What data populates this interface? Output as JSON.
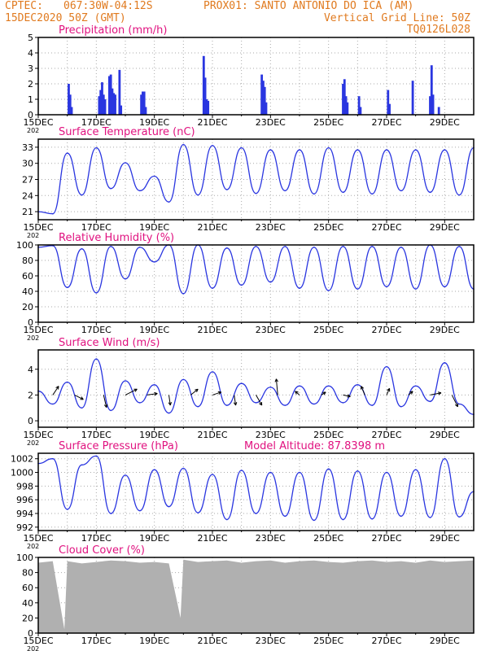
{
  "header": {
    "line1_left": "CPTEC:",
    "line1_coords": "067:30W-04:12S",
    "line1_station": "PROX01: SANTO ANTONIO DO ICA (AM)",
    "line2_left": "15DEC2020 50Z (GMT)",
    "line2_right": "Vertical Grid Line: 50Z",
    "line3_right": "TQ0126L028"
  },
  "colors": {
    "header": "#e07a1f",
    "title": "#e0117f",
    "series": "#2a36e0",
    "cloud": "#b0b0b0",
    "grid": "#aaaaaa",
    "arrow": "#000000"
  },
  "x_axis": {
    "ticks": [
      "15DEC",
      "17DEC",
      "19DEC",
      "21DEC",
      "23DEC",
      "25DEC",
      "27DEC",
      "29DEC"
    ],
    "year_fragment": "202",
    "range_days": [
      0,
      15
    ]
  },
  "chart_data": [
    {
      "type": "bar",
      "title": "Precipitation (mm/h)",
      "ylim": [
        0,
        5
      ],
      "yticks": [
        "0",
        "1",
        "2",
        "3",
        "4",
        "5"
      ],
      "x_days": [
        1.05,
        1.1,
        1.15,
        2.1,
        2.15,
        2.2,
        2.25,
        2.3,
        2.45,
        2.5,
        2.55,
        2.6,
        2.65,
        2.8,
        2.85,
        3.55,
        3.6,
        3.65,
        3.7,
        5.7,
        5.75,
        5.8,
        5.85,
        7.7,
        7.75,
        7.8,
        7.85,
        10.5,
        10.55,
        10.6,
        10.65,
        11.05,
        11.1,
        12.05,
        12.1,
        12.9,
        13.5,
        13.55,
        13.6,
        13.8
      ],
      "values": [
        2.0,
        1.3,
        0.5,
        1.2,
        1.6,
        2.1,
        1.3,
        1.0,
        2.5,
        2.6,
        1.7,
        1.4,
        1.3,
        2.9,
        0.6,
        1.3,
        1.5,
        1.5,
        0.5,
        3.8,
        2.4,
        1.0,
        0.9,
        2.6,
        2.2,
        1.8,
        0.8,
        2.0,
        2.3,
        1.2,
        0.8,
        1.2,
        0.5,
        1.6,
        0.7,
        2.2,
        1.2,
        3.2,
        1.3,
        0.5
      ]
    },
    {
      "type": "line",
      "title": "Surface Temperature (nC)",
      "ylim": [
        19.5,
        34.5
      ],
      "yticks": [
        "21",
        "24",
        "27",
        "30",
        "33"
      ],
      "x_days": [
        0,
        0.5,
        1.0,
        1.5,
        2.0,
        2.5,
        3.0,
        3.5,
        4.0,
        4.5,
        5.0,
        5.5,
        6.0,
        6.5,
        7.0,
        7.5,
        8.0,
        8.5,
        9.0,
        9.5,
        10.0,
        10.5,
        11.0,
        11.5,
        12.0,
        12.5,
        13.0,
        13.5,
        14.0,
        14.5,
        15.0
      ],
      "values": [
        21.0,
        20.6,
        31.9,
        24.1,
        32.9,
        25.3,
        30.1,
        24.9,
        27.6,
        22.8,
        33.5,
        24.1,
        33.3,
        25.1,
        32.9,
        24.4,
        32.5,
        24.9,
        32.5,
        24.3,
        32.9,
        24.6,
        32.5,
        24.3,
        32.5,
        24.9,
        32.5,
        24.6,
        32.5,
        24.1,
        32.9
      ]
    },
    {
      "type": "line",
      "title": "Relative Humidity (%)",
      "ylim": [
        0,
        100
      ],
      "yticks": [
        "0",
        "20",
        "40",
        "60",
        "80",
        "100"
      ],
      "x_days": [
        0,
        0.5,
        1.0,
        1.5,
        2.0,
        2.5,
        3.0,
        3.5,
        4.0,
        4.5,
        5.0,
        5.5,
        6.0,
        6.5,
        7.0,
        7.5,
        8.0,
        8.5,
        9.0,
        9.5,
        10.0,
        10.5,
        11.0,
        11.5,
        12.0,
        12.5,
        13.0,
        13.5,
        14.0,
        14.5,
        15.0
      ],
      "values": [
        97,
        99,
        45,
        95,
        38,
        98,
        56,
        97,
        78,
        100,
        37,
        100,
        44,
        96,
        48,
        98,
        52,
        98,
        44,
        97,
        41,
        98,
        43,
        98,
        46,
        97,
        43,
        100,
        46,
        98,
        43
      ]
    },
    {
      "type": "line",
      "title": "Surface Wind (m/s)",
      "ylim": [
        -0.5,
        5.5
      ],
      "yticks": [
        "0",
        "2",
        "4"
      ],
      "x_days": [
        0,
        0.5,
        1.0,
        1.5,
        2.0,
        2.5,
        3.0,
        3.5,
        4.0,
        4.5,
        5.0,
        5.5,
        6.0,
        6.5,
        7.0,
        7.5,
        8.0,
        8.5,
        9.0,
        9.5,
        10.0,
        10.5,
        11.0,
        11.5,
        12.0,
        12.5,
        13.0,
        13.5,
        14.0,
        14.5,
        15.0
      ],
      "values": [
        2.3,
        1.3,
        3.0,
        1.0,
        4.8,
        0.8,
        3.1,
        1.4,
        2.8,
        0.6,
        3.2,
        1.1,
        3.8,
        1.2,
        2.9,
        1.4,
        2.6,
        1.2,
        2.7,
        1.3,
        2.7,
        1.4,
        2.8,
        1.2,
        4.2,
        1.1,
        2.7,
        1.5,
        4.5,
        1.3,
        0.5
      ],
      "vectors": {
        "x_days": [
          0.5,
          1.25,
          2.25,
          3.0,
          3.75,
          4.5,
          5.25,
          6.0,
          6.75,
          7.5,
          8.25,
          9.0,
          9.75,
          10.5,
          11.25,
          12.0,
          12.75,
          13.5,
          14.25
        ],
        "u": [
          0.8,
          1.2,
          0.4,
          1.6,
          1.4,
          0.2,
          1.0,
          1.2,
          0.2,
          0.8,
          -0.2,
          -0.6,
          0.6,
          1.0,
          -0.5,
          0.4,
          0.6,
          1.5,
          0.8
        ],
        "v": [
          1.2,
          -0.6,
          -1.7,
          0.8,
          0.2,
          -1.4,
          0.8,
          0.4,
          -1.4,
          -1.4,
          2.2,
          0.5,
          0.4,
          -0.2,
          1.2,
          0.9,
          0.5,
          0.3,
          -1.6
        ]
      }
    },
    {
      "type": "line",
      "title": "Surface Pressure (hPa)",
      "annotation": "Model Altitude: 87.8398 m",
      "ylim": [
        991.5,
        1002.8
      ],
      "yticks": [
        "992",
        "994",
        "996",
        "998",
        "1000",
        "1002"
      ],
      "x_days": [
        0,
        0.5,
        1.0,
        1.5,
        2.0,
        2.5,
        3.0,
        3.5,
        4.0,
        4.5,
        5.0,
        5.5,
        6.0,
        6.5,
        7.0,
        7.5,
        8.0,
        8.5,
        9.0,
        9.5,
        10.0,
        10.5,
        11.0,
        11.5,
        12.0,
        12.5,
        13.0,
        13.5,
        14.0,
        14.5,
        15.0
      ],
      "values": [
        1001.3,
        1002.0,
        994.6,
        1001.1,
        1002.4,
        994.0,
        999.6,
        994.4,
        1000.4,
        995.0,
        1000.6,
        994.1,
        999.7,
        993.1,
        1000.3,
        994.0,
        1000.0,
        993.6,
        1000.0,
        993.0,
        1000.5,
        993.1,
        1000.2,
        993.2,
        1000.0,
        993.6,
        1000.4,
        993.4,
        1002.0,
        993.5,
        997.2
      ]
    },
    {
      "type": "area",
      "title": "Cloud Cover (%)",
      "ylim": [
        0,
        100
      ],
      "yticks": [
        "0",
        "20",
        "40",
        "60",
        "80",
        "100"
      ],
      "x_days": [
        0,
        0.5,
        0.9,
        1.0,
        1.5,
        2.0,
        2.5,
        3.0,
        3.5,
        4.0,
        4.5,
        4.9,
        5.0,
        5.5,
        6.0,
        6.5,
        7.0,
        7.5,
        8.0,
        8.5,
        9.0,
        9.5,
        10.0,
        10.5,
        11.0,
        11.5,
        12.0,
        12.5,
        13.0,
        13.5,
        14.0,
        14.5,
        15.0
      ],
      "values": [
        93,
        95,
        5,
        95,
        92,
        94,
        96,
        95,
        93,
        94,
        92,
        20,
        97,
        94,
        95,
        96,
        93,
        95,
        96,
        93,
        95,
        96,
        94,
        93,
        95,
        96,
        94,
        95,
        93,
        96,
        94,
        95,
        96
      ]
    }
  ]
}
